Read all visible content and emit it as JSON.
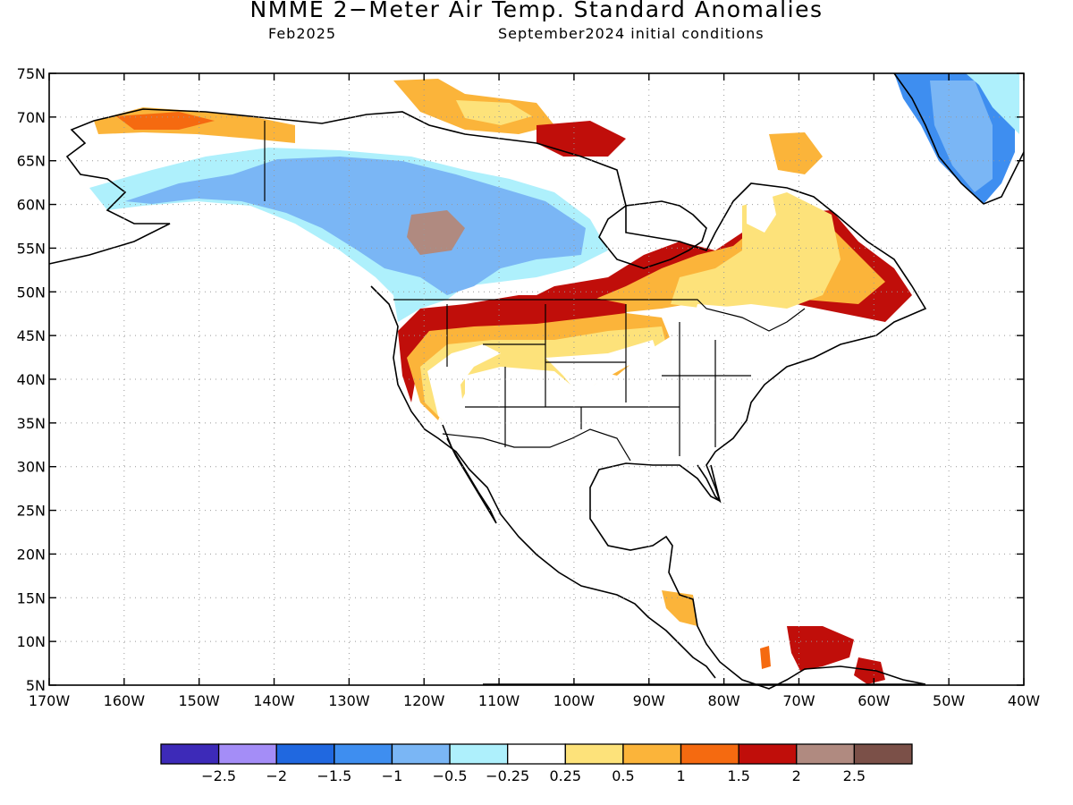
{
  "title": "NMME 2−Meter Air Temp. Standard Anomalies",
  "subtitle_left": "Feb2025",
  "subtitle_right": "September2024 initial conditions",
  "lat_labels": [
    "75N",
    "70N",
    "65N",
    "60N",
    "55N",
    "50N",
    "45N",
    "40N",
    "35N",
    "30N",
    "25N",
    "20N",
    "15N",
    "10N",
    "5N"
  ],
  "lon_labels": [
    "170W",
    "160W",
    "150W",
    "140W",
    "130W",
    "120W",
    "110W",
    "100W",
    "90W",
    "80W",
    "70W",
    "60W",
    "50W",
    "40W"
  ],
  "colorbar": {
    "colors": [
      "#3d2ab8",
      "#a48df7",
      "#2068e0",
      "#3e8ef0",
      "#7ab6f5",
      "#aef0fc",
      "#ffffff",
      "#fde27a",
      "#fbb43a",
      "#f56a10",
      "#c00e0a",
      "#b08a80",
      "#7b5048"
    ],
    "labels": [
      "−2.5",
      "−2",
      "−1.5",
      "−1",
      "−0.5",
      "−0.25",
      "0.25",
      "0.5",
      "1",
      "1.5",
      "2",
      "2.5"
    ]
  },
  "regions": [
    {
      "name": "western-canada-cold",
      "color": "#7ab6f5"
    },
    {
      "name": "canada-near-normal-cold",
      "color": "#aef0fc"
    },
    {
      "name": "greenland-cold",
      "color": "#3e8ef0"
    },
    {
      "name": "us-mexico-warm",
      "color": "#b08a80"
    },
    {
      "name": "us-interior-very-warm",
      "color": "#7b5048"
    },
    {
      "name": "northern-us-warm",
      "color": "#f56a10"
    },
    {
      "name": "eastern-canada-warm",
      "color": "#fbb43a"
    },
    {
      "name": "quebec-very-warm",
      "color": "#c00e0a"
    },
    {
      "name": "arctic-warm",
      "color": "#fbb43a"
    },
    {
      "name": "caribbean-slight-warm",
      "color": "#fde27a"
    }
  ]
}
